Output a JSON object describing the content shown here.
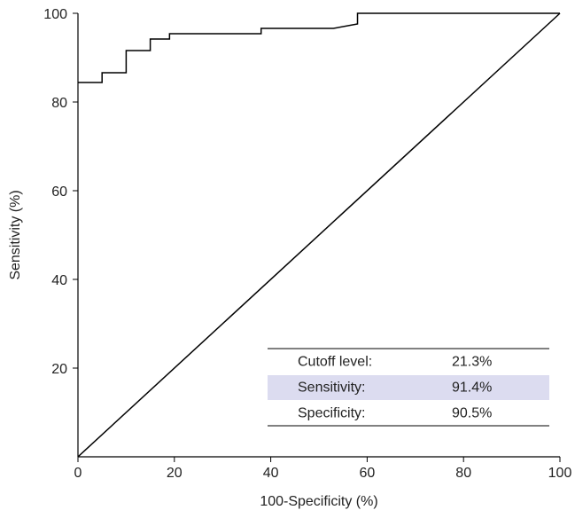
{
  "chart_data": {
    "type": "line",
    "xlabel": "100-Specificity (%)",
    "ylabel": "Sensitivity (%)",
    "xlim": [
      0,
      100
    ],
    "ylim": [
      0,
      100
    ],
    "xticks": [
      0,
      20,
      40,
      60,
      80,
      100
    ],
    "yticks": [
      20,
      40,
      60,
      80,
      100
    ],
    "series": [
      {
        "color": "#000000",
        "x": [
          0,
          5,
          5,
          10,
          10,
          15,
          15,
          19,
          19,
          38,
          38,
          53,
          58,
          58,
          100
        ],
        "values": [
          84.4,
          84.4,
          86.6,
          86.6,
          91.6,
          91.6,
          94.2,
          94.2,
          95.4,
          95.4,
          96.6,
          96.6,
          97.6,
          100,
          100
        ]
      },
      {
        "color": "#000000",
        "x": [
          0,
          100
        ],
        "values": [
          0,
          100
        ]
      }
    ],
    "table": {
      "highlight_row": 1,
      "highlight_color": "#dcdcf0",
      "rows": [
        [
          "Cutoff level:",
          "21.3%"
        ],
        [
          "Sensitivity:",
          "91.4%"
        ],
        [
          "Specificity:",
          "90.5%"
        ]
      ]
    }
  }
}
